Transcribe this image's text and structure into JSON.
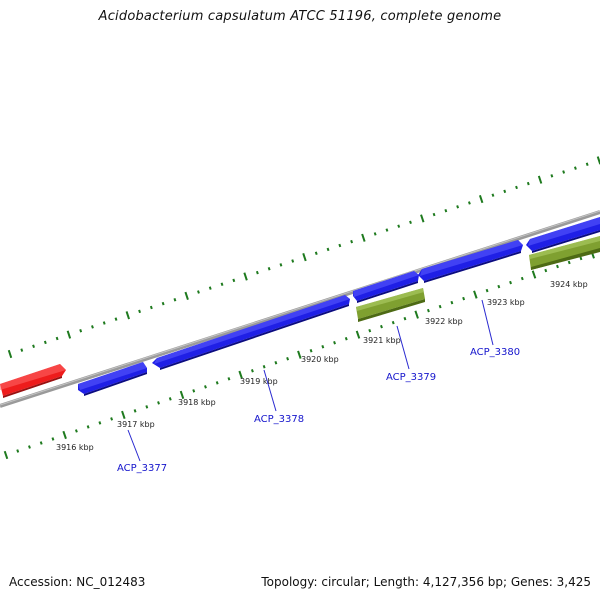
{
  "title": "Acidobacterium capsulatum ATCC 51196, complete genome",
  "footer": {
    "accession": "Accession: NC_012483",
    "topology": "Topology: circular; Length: 4,127,356 bp; Genes: 3,425"
  },
  "colors": {
    "backbone": "#8c8c8c",
    "ticks": "#1e7a1e",
    "forward_gene": "#1f1fe6",
    "reverse_gene": "#7fa030",
    "highlight_gene": "#ee1c1c",
    "gene_label": "#1515cc"
  },
  "tick_labels": [
    "3916 kbp",
    "3917 kbp",
    "3918 kbp",
    "3919 kbp",
    "3920 kbp",
    "3921 kbp",
    "3922 kbp",
    "3923 kbp",
    "3924 kbp"
  ],
  "gene_labels": [
    "ACP_3377",
    "ACP_3378",
    "ACP_3379",
    "ACP_3380"
  ]
}
